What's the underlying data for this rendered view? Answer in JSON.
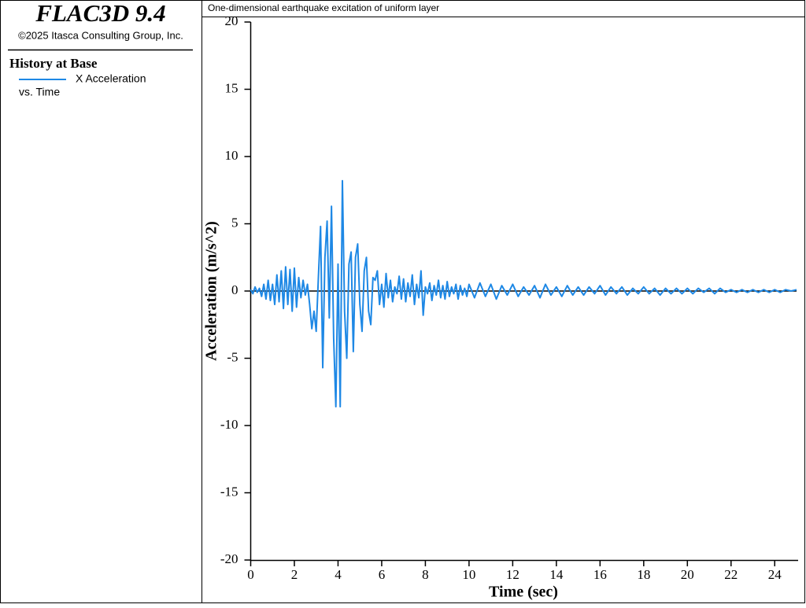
{
  "header": {
    "app": "FLAC3D 9.4",
    "copyright": "©2025 Itasca Consulting Group, Inc."
  },
  "legend_title": "History at Base",
  "chart_data": {
    "type": "line",
    "title": "One-dimensional earthquake excitation of uniform layer",
    "x_label": "Time (sec)",
    "y_label": "Acceleration (m/s^2)",
    "legend_subtitle": "vs. Time",
    "x": [
      0,
      0.1,
      0.2,
      0.3,
      0.4,
      0.5,
      0.6,
      0.7,
      0.8,
      0.9,
      1,
      1.1,
      1.2,
      1.3,
      1.4,
      1.5,
      1.6,
      1.7,
      1.8,
      1.9,
      2,
      2.1,
      2.2,
      2.3,
      2.4,
      2.5,
      2.6,
      2.7,
      2.8,
      2.9,
      3,
      3.1,
      3.2,
      3.3,
      3.4,
      3.5,
      3.6,
      3.7,
      3.8,
      3.9,
      4,
      4.1,
      4.2,
      4.3,
      4.4,
      4.5,
      4.6,
      4.7,
      4.8,
      4.9,
      5,
      5.1,
      5.2,
      5.3,
      5.4,
      5.5,
      5.6,
      5.7,
      5.8,
      5.9,
      6,
      6.1,
      6.2,
      6.3,
      6.4,
      6.5,
      6.6,
      6.7,
      6.8,
      6.9,
      7,
      7.1,
      7.2,
      7.3,
      7.4,
      7.5,
      7.6,
      7.7,
      7.8,
      7.9,
      8,
      8.1,
      8.2,
      8.3,
      8.4,
      8.5,
      8.6,
      8.7,
      8.8,
      8.9,
      9,
      9.1,
      9.2,
      9.3,
      9.4,
      9.5,
      9.6,
      9.7,
      9.8,
      9.9,
      10,
      10.25,
      10.5,
      10.75,
      11,
      11.25,
      11.5,
      11.75,
      12,
      12.25,
      12.5,
      12.75,
      13,
      13.25,
      13.5,
      13.75,
      14,
      14.25,
      14.5,
      14.75,
      15,
      15.25,
      15.5,
      15.75,
      16,
      16.25,
      16.5,
      16.75,
      17,
      17.25,
      17.5,
      17.75,
      18,
      18.25,
      18.5,
      18.75,
      19,
      19.25,
      19.5,
      19.75,
      20,
      20.25,
      20.5,
      20.75,
      21,
      21.25,
      21.5,
      21.75,
      22,
      22.25,
      22.5,
      22.75,
      23,
      23.25,
      23.5,
      23.75,
      24,
      24.25,
      24.5,
      24.75,
      25
    ],
    "series": [
      {
        "name": "X Acceleration",
        "color": "#1e88e5",
        "values": [
          0.1,
          -0.2,
          0.3,
          -0.1,
          0.2,
          -0.4,
          0.5,
          -0.6,
          0.8,
          -0.7,
          0.5,
          -1.0,
          1.2,
          -0.8,
          1.5,
          -1.3,
          1.8,
          -1.0,
          1.6,
          -1.5,
          1.7,
          -1.2,
          1.0,
          -0.5,
          0.8,
          -0.3,
          0.5,
          -1.0,
          -2.8,
          -1.5,
          -3.0,
          1.0,
          4.8,
          -5.7,
          2.5,
          5.2,
          -2.0,
          6.3,
          -3.5,
          -8.6,
          2.0,
          -8.6,
          8.2,
          -1.5,
          -5.0,
          2.0,
          2.9,
          -4.5,
          2.5,
          3.5,
          -1.0,
          -3.0,
          1.5,
          2.5,
          -1.5,
          -2.5,
          1.0,
          0.8,
          1.5,
          -1.0,
          0.5,
          -1.2,
          1.3,
          -0.5,
          0.8,
          -0.8,
          0.3,
          -0.2,
          1.1,
          -0.6,
          0.9,
          -0.8,
          0.6,
          -0.4,
          1.2,
          -1.0,
          0.5,
          -0.5,
          1.5,
          -1.8,
          0.3,
          -0.2,
          0.6,
          -0.7,
          0.4,
          -0.3,
          0.8,
          -0.5,
          0.4,
          -0.6,
          0.7,
          -0.4,
          0.3,
          -0.2,
          0.5,
          -0.6,
          0.4,
          -0.3,
          0.2,
          -0.4,
          0.5,
          -0.5,
          0.6,
          -0.4,
          0.5,
          -0.6,
          0.4,
          -0.3,
          0.5,
          -0.4,
          0.3,
          -0.3,
          0.4,
          -0.5,
          0.5,
          -0.3,
          0.3,
          -0.4,
          0.4,
          -0.3,
          0.3,
          -0.3,
          0.3,
          -0.2,
          0.4,
          -0.3,
          0.3,
          -0.2,
          0.3,
          -0.3,
          0.2,
          -0.2,
          0.3,
          -0.2,
          0.2,
          -0.3,
          0.2,
          -0.2,
          0.2,
          -0.2,
          0.2,
          -0.2,
          0.2,
          -0.1,
          0.2,
          -0.2,
          0.2,
          -0.1,
          0.1,
          -0.1,
          0.1,
          -0.1,
          0.1,
          -0.1,
          0.1,
          -0.1,
          0.1,
          -0.1,
          0.1,
          0.0,
          0.1
        ]
      }
    ],
    "xlim": [
      0,
      25
    ],
    "xticks": [
      0,
      2,
      4,
      6,
      8,
      10,
      12,
      14,
      16,
      18,
      20,
      22,
      24
    ],
    "ylim": [
      -20,
      20
    ],
    "yticks": [
      -20,
      -15,
      -10,
      -5,
      0,
      5,
      10,
      15,
      20
    ]
  }
}
